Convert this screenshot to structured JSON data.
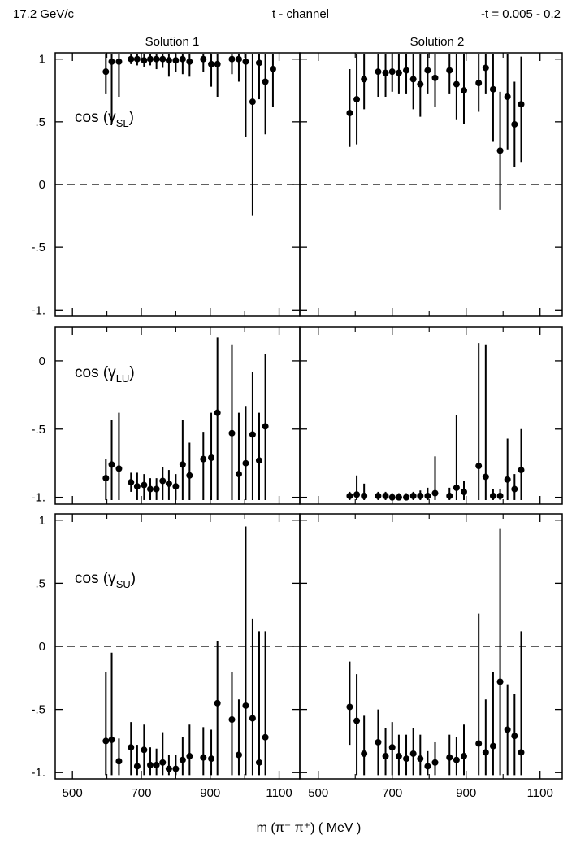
{
  "header": {
    "beam": "17.2 GeV/c",
    "channel": "t - channel",
    "t_range": "-t = 0.005 - 0.2"
  },
  "columns": [
    "Solution 1",
    "Solution 2"
  ],
  "xlabel": "m (π⁻ π⁺)  ( MeV )",
  "colors": {
    "ink": "#000000",
    "background": "#ffffff"
  },
  "chart_data": [
    {
      "type": "scatter",
      "title": "Solution 1",
      "panel_label": "cos (γSL)",
      "label_main": "cos (γ",
      "label_sub": "SL",
      "xlim": [
        450,
        1160
      ],
      "ylim": [
        -1.05,
        1.05
      ],
      "xticks": [
        "500",
        "700",
        "900",
        "1100"
      ],
      "yticks": [
        "1",
        ".5",
        "0",
        "-.5",
        "-1."
      ],
      "reference_line": 0,
      "points": [
        {
          "x": 597,
          "y": 0.9,
          "lo": 0.72,
          "hi": 1.05
        },
        {
          "x": 614,
          "y": 0.98,
          "lo": 0.48,
          "hi": 1.05
        },
        {
          "x": 635,
          "y": 0.98,
          "lo": 0.7,
          "hi": 1.05
        },
        {
          "x": 670,
          "y": 1.0,
          "lo": 0.96,
          "hi": 1.04
        },
        {
          "x": 688,
          "y": 1.0,
          "lo": 0.95,
          "hi": 1.04
        },
        {
          "x": 708,
          "y": 0.99,
          "lo": 0.94,
          "hi": 1.04
        },
        {
          "x": 726,
          "y": 1.0,
          "lo": 0.95,
          "hi": 1.04
        },
        {
          "x": 744,
          "y": 1.0,
          "lo": 0.92,
          "hi": 1.04
        },
        {
          "x": 762,
          "y": 1.0,
          "lo": 0.93,
          "hi": 1.04
        },
        {
          "x": 780,
          "y": 0.99,
          "lo": 0.86,
          "hi": 1.04
        },
        {
          "x": 800,
          "y": 0.99,
          "lo": 0.9,
          "hi": 1.04
        },
        {
          "x": 820,
          "y": 1.0,
          "lo": 0.88,
          "hi": 1.04
        },
        {
          "x": 840,
          "y": 0.98,
          "lo": 0.86,
          "hi": 1.04
        },
        {
          "x": 880,
          "y": 1.0,
          "lo": 0.9,
          "hi": 1.04
        },
        {
          "x": 903,
          "y": 0.96,
          "lo": 0.78,
          "hi": 1.04
        },
        {
          "x": 921,
          "y": 0.96,
          "lo": 0.7,
          "hi": 1.04
        },
        {
          "x": 963,
          "y": 1.0,
          "lo": 0.88,
          "hi": 1.04
        },
        {
          "x": 983,
          "y": 1.0,
          "lo": 0.82,
          "hi": 1.04
        },
        {
          "x": 1003,
          "y": 0.98,
          "lo": 0.38,
          "hi": 1.04
        },
        {
          "x": 1023,
          "y": 0.66,
          "lo": -0.25,
          "hi": 1.04
        },
        {
          "x": 1042,
          "y": 0.97,
          "lo": 0.68,
          "hi": 1.04
        },
        {
          "x": 1060,
          "y": 0.82,
          "lo": 0.4,
          "hi": 1.04
        },
        {
          "x": 1082,
          "y": 0.92,
          "lo": 0.62,
          "hi": 1.04
        }
      ]
    },
    {
      "type": "scatter",
      "title": "Solution 2",
      "xlim": [
        450,
        1160
      ],
      "ylim": [
        -1.05,
        1.05
      ],
      "xticks": [
        "500",
        "700",
        "900",
        "1100"
      ],
      "yticks": [],
      "reference_line": 0,
      "points": [
        {
          "x": 585,
          "y": 0.57,
          "lo": 0.3,
          "hi": 0.92
        },
        {
          "x": 604,
          "y": 0.68,
          "lo": 0.32,
          "hi": 1.04
        },
        {
          "x": 624,
          "y": 0.84,
          "lo": 0.6,
          "hi": 1.04
        },
        {
          "x": 662,
          "y": 0.9,
          "lo": 0.7,
          "hi": 1.04
        },
        {
          "x": 682,
          "y": 0.89,
          "lo": 0.7,
          "hi": 1.04
        },
        {
          "x": 700,
          "y": 0.9,
          "lo": 0.74,
          "hi": 1.04
        },
        {
          "x": 718,
          "y": 0.89,
          "lo": 0.72,
          "hi": 1.04
        },
        {
          "x": 738,
          "y": 0.91,
          "lo": 0.72,
          "hi": 1.04
        },
        {
          "x": 757,
          "y": 0.84,
          "lo": 0.6,
          "hi": 1.04
        },
        {
          "x": 776,
          "y": 0.8,
          "lo": 0.54,
          "hi": 1.04
        },
        {
          "x": 796,
          "y": 0.91,
          "lo": 0.72,
          "hi": 1.04
        },
        {
          "x": 816,
          "y": 0.85,
          "lo": 0.62,
          "hi": 1.04
        },
        {
          "x": 855,
          "y": 0.91,
          "lo": 0.72,
          "hi": 1.04
        },
        {
          "x": 874,
          "y": 0.8,
          "lo": 0.52,
          "hi": 1.04
        },
        {
          "x": 894,
          "y": 0.75,
          "lo": 0.48,
          "hi": 1.04
        },
        {
          "x": 934,
          "y": 0.81,
          "lo": 0.58,
          "hi": 1.04
        },
        {
          "x": 953,
          "y": 0.93,
          "lo": 0.72,
          "hi": 1.04
        },
        {
          "x": 973,
          "y": 0.76,
          "lo": 0.34,
          "hi": 1.04
        },
        {
          "x": 992,
          "y": 0.27,
          "lo": -0.2,
          "hi": 0.74
        },
        {
          "x": 1012,
          "y": 0.7,
          "lo": 0.28,
          "hi": 1.04
        },
        {
          "x": 1031,
          "y": 0.48,
          "lo": 0.14,
          "hi": 0.82
        },
        {
          "x": 1049,
          "y": 0.64,
          "lo": 0.18,
          "hi": 1.02
        }
      ]
    },
    {
      "type": "scatter",
      "title": "",
      "panel_label": "cos (γLU)",
      "label_main": "cos (γ",
      "label_sub": "LU",
      "xlim": [
        450,
        1160
      ],
      "ylim": [
        -1.05,
        0.25
      ],
      "xticks": [
        "500",
        "700",
        "900",
        "1100"
      ],
      "yticks": [
        "0",
        "-.5",
        "-1."
      ],
      "points": [
        {
          "x": 597,
          "y": -0.86,
          "lo": -1.02,
          "hi": -0.72
        },
        {
          "x": 614,
          "y": -0.76,
          "lo": -1.02,
          "hi": -0.43
        },
        {
          "x": 635,
          "y": -0.79,
          "lo": -1.02,
          "hi": -0.38
        },
        {
          "x": 670,
          "y": -0.89,
          "lo": -0.96,
          "hi": -0.82
        },
        {
          "x": 688,
          "y": -0.92,
          "lo": -1.02,
          "hi": -0.82
        },
        {
          "x": 708,
          "y": -0.91,
          "lo": -1.02,
          "hi": -0.83
        },
        {
          "x": 726,
          "y": -0.94,
          "lo": -1.02,
          "hi": -0.86
        },
        {
          "x": 744,
          "y": -0.94,
          "lo": -1.02,
          "hi": -0.86
        },
        {
          "x": 762,
          "y": -0.88,
          "lo": -1.02,
          "hi": -0.78
        },
        {
          "x": 780,
          "y": -0.9,
          "lo": -1.02,
          "hi": -0.8
        },
        {
          "x": 800,
          "y": -0.92,
          "lo": -1.02,
          "hi": -0.83
        },
        {
          "x": 820,
          "y": -0.76,
          "lo": -1.02,
          "hi": -0.43
        },
        {
          "x": 840,
          "y": -0.84,
          "lo": -1.02,
          "hi": -0.6
        },
        {
          "x": 880,
          "y": -0.72,
          "lo": -1.02,
          "hi": -0.52
        },
        {
          "x": 903,
          "y": -0.71,
          "lo": -1.02,
          "hi": -0.38
        },
        {
          "x": 921,
          "y": -0.38,
          "lo": -1.02,
          "hi": 0.17
        },
        {
          "x": 963,
          "y": -0.53,
          "lo": -1.02,
          "hi": 0.12
        },
        {
          "x": 983,
          "y": -0.83,
          "lo": -1.02,
          "hi": -0.38
        },
        {
          "x": 1003,
          "y": -0.75,
          "lo": -1.02,
          "hi": -0.33
        },
        {
          "x": 1023,
          "y": -0.54,
          "lo": -1.02,
          "hi": -0.08
        },
        {
          "x": 1042,
          "y": -0.73,
          "lo": -1.02,
          "hi": -0.38
        },
        {
          "x": 1060,
          "y": -0.48,
          "lo": -1.02,
          "hi": 0.05
        }
      ]
    },
    {
      "type": "scatter",
      "title": "",
      "xlim": [
        450,
        1160
      ],
      "ylim": [
        -1.05,
        0.25
      ],
      "xticks": [
        "500",
        "700",
        "900",
        "1100"
      ],
      "yticks": [],
      "points": [
        {
          "x": 585,
          "y": -0.99,
          "lo": -1.02,
          "hi": -0.96
        },
        {
          "x": 604,
          "y": -0.98,
          "lo": -1.02,
          "hi": -0.84
        },
        {
          "x": 624,
          "y": -0.99,
          "lo": -1.02,
          "hi": -0.9
        },
        {
          "x": 662,
          "y": -0.99,
          "lo": -1.02,
          "hi": -0.96
        },
        {
          "x": 682,
          "y": -0.99,
          "lo": -1.02,
          "hi": -0.96
        },
        {
          "x": 700,
          "y": -1.0,
          "lo": -1.02,
          "hi": -0.97
        },
        {
          "x": 718,
          "y": -1.0,
          "lo": -1.02,
          "hi": -0.97
        },
        {
          "x": 738,
          "y": -1.0,
          "lo": -1.02,
          "hi": -0.97
        },
        {
          "x": 757,
          "y": -0.99,
          "lo": -1.02,
          "hi": -0.96
        },
        {
          "x": 776,
          "y": -0.99,
          "lo": -1.02,
          "hi": -0.95
        },
        {
          "x": 796,
          "y": -0.99,
          "lo": -1.02,
          "hi": -0.93
        },
        {
          "x": 816,
          "y": -0.97,
          "lo": -1.02,
          "hi": -0.7
        },
        {
          "x": 855,
          "y": -0.99,
          "lo": -1.02,
          "hi": -0.93
        },
        {
          "x": 874,
          "y": -0.93,
          "lo": -1.02,
          "hi": -0.4
        },
        {
          "x": 894,
          "y": -0.96,
          "lo": -1.02,
          "hi": -0.88
        },
        {
          "x": 934,
          "y": -0.77,
          "lo": -1.02,
          "hi": 0.13
        },
        {
          "x": 953,
          "y": -0.85,
          "lo": -1.02,
          "hi": 0.12
        },
        {
          "x": 973,
          "y": -0.99,
          "lo": -1.02,
          "hi": -0.94
        },
        {
          "x": 992,
          "y": -0.99,
          "lo": -1.02,
          "hi": -0.94
        },
        {
          "x": 1012,
          "y": -0.87,
          "lo": -1.02,
          "hi": -0.57
        },
        {
          "x": 1031,
          "y": -0.94,
          "lo": -1.02,
          "hi": -0.83
        },
        {
          "x": 1049,
          "y": -0.8,
          "lo": -1.02,
          "hi": -0.5
        }
      ]
    },
    {
      "type": "scatter",
      "title": "",
      "panel_label": "cos (γSU)",
      "label_main": "cos (γ",
      "label_sub": "SU",
      "xlim": [
        450,
        1160
      ],
      "ylim": [
        -1.05,
        1.05
      ],
      "xticks": [
        "500",
        "700",
        "900",
        "1100"
      ],
      "yticks": [
        "1",
        ".5",
        "0",
        "-.5",
        "-1."
      ],
      "reference_line": 0,
      "points": [
        {
          "x": 597,
          "y": -0.75,
          "lo": -1.02,
          "hi": -0.2
        },
        {
          "x": 614,
          "y": -0.74,
          "lo": -1.02,
          "hi": -0.05
        },
        {
          "x": 635,
          "y": -0.91,
          "lo": -1.02,
          "hi": -0.73
        },
        {
          "x": 670,
          "y": -0.8,
          "lo": -1.02,
          "hi": -0.6
        },
        {
          "x": 688,
          "y": -0.95,
          "lo": -1.02,
          "hi": -0.78
        },
        {
          "x": 708,
          "y": -0.82,
          "lo": -1.02,
          "hi": -0.62
        },
        {
          "x": 726,
          "y": -0.94,
          "lo": -1.02,
          "hi": -0.8
        },
        {
          "x": 744,
          "y": -0.94,
          "lo": -1.02,
          "hi": -0.81
        },
        {
          "x": 762,
          "y": -0.92,
          "lo": -1.02,
          "hi": -0.68
        },
        {
          "x": 780,
          "y": -0.97,
          "lo": -1.02,
          "hi": -0.86
        },
        {
          "x": 800,
          "y": -0.97,
          "lo": -1.02,
          "hi": -0.86
        },
        {
          "x": 820,
          "y": -0.9,
          "lo": -1.02,
          "hi": -0.72
        },
        {
          "x": 840,
          "y": -0.87,
          "lo": -1.02,
          "hi": -0.62
        },
        {
          "x": 880,
          "y": -0.88,
          "lo": -1.02,
          "hi": -0.64
        },
        {
          "x": 903,
          "y": -0.89,
          "lo": -1.02,
          "hi": -0.66
        },
        {
          "x": 921,
          "y": -0.45,
          "lo": -1.02,
          "hi": 0.04
        },
        {
          "x": 963,
          "y": -0.58,
          "lo": -1.02,
          "hi": -0.2
        },
        {
          "x": 983,
          "y": -0.86,
          "lo": -1.02,
          "hi": -0.42
        },
        {
          "x": 1003,
          "y": -0.47,
          "lo": -1.02,
          "hi": 0.95
        },
        {
          "x": 1023,
          "y": -0.57,
          "lo": -1.02,
          "hi": 0.22
        },
        {
          "x": 1042,
          "y": -0.92,
          "lo": -1.02,
          "hi": 0.12
        },
        {
          "x": 1060,
          "y": -0.72,
          "lo": -1.02,
          "hi": 0.12
        }
      ]
    },
    {
      "type": "scatter",
      "title": "",
      "xlim": [
        450,
        1160
      ],
      "ylim": [
        -1.05,
        1.05
      ],
      "xticks": [
        "500",
        "700",
        "900",
        "1100"
      ],
      "yticks": [],
      "reference_line": 0,
      "points": [
        {
          "x": 585,
          "y": -0.48,
          "lo": -0.78,
          "hi": -0.12
        },
        {
          "x": 604,
          "y": -0.59,
          "lo": -1.02,
          "hi": -0.22
        },
        {
          "x": 624,
          "y": -0.85,
          "lo": -1.02,
          "hi": -0.55
        },
        {
          "x": 662,
          "y": -0.76,
          "lo": -1.02,
          "hi": -0.5
        },
        {
          "x": 682,
          "y": -0.87,
          "lo": -1.02,
          "hi": -0.65
        },
        {
          "x": 700,
          "y": -0.8,
          "lo": -1.02,
          "hi": -0.6
        },
        {
          "x": 718,
          "y": -0.87,
          "lo": -1.02,
          "hi": -0.7
        },
        {
          "x": 738,
          "y": -0.89,
          "lo": -1.02,
          "hi": -0.7
        },
        {
          "x": 757,
          "y": -0.85,
          "lo": -1.02,
          "hi": -0.65
        },
        {
          "x": 776,
          "y": -0.89,
          "lo": -1.02,
          "hi": -0.7
        },
        {
          "x": 796,
          "y": -0.95,
          "lo": -1.02,
          "hi": -0.83
        },
        {
          "x": 816,
          "y": -0.92,
          "lo": -1.02,
          "hi": -0.76
        },
        {
          "x": 855,
          "y": -0.88,
          "lo": -1.02,
          "hi": -0.7
        },
        {
          "x": 874,
          "y": -0.9,
          "lo": -1.02,
          "hi": -0.72
        },
        {
          "x": 894,
          "y": -0.87,
          "lo": -1.02,
          "hi": -0.62
        },
        {
          "x": 934,
          "y": -0.77,
          "lo": -1.02,
          "hi": 0.26
        },
        {
          "x": 953,
          "y": -0.84,
          "lo": -1.02,
          "hi": -0.42
        },
        {
          "x": 973,
          "y": -0.79,
          "lo": -1.02,
          "hi": -0.2
        },
        {
          "x": 992,
          "y": -0.28,
          "lo": -1.02,
          "hi": 0.93
        },
        {
          "x": 1012,
          "y": -0.66,
          "lo": -1.02,
          "hi": -0.3
        },
        {
          "x": 1031,
          "y": -0.71,
          "lo": -1.02,
          "hi": -0.38
        },
        {
          "x": 1049,
          "y": -0.84,
          "lo": -1.02,
          "hi": 0.12
        }
      ]
    }
  ]
}
